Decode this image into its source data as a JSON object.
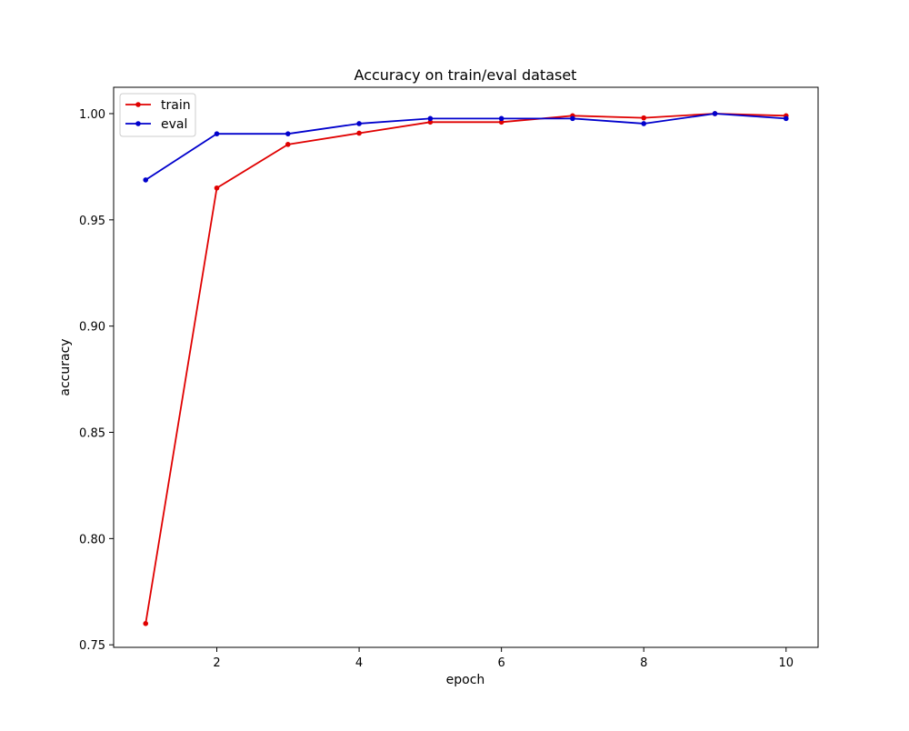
{
  "chart_data": {
    "type": "line",
    "title": "Accuracy on train/eval dataset",
    "xlabel": "epoch",
    "ylabel": "accuracy",
    "xlim": [
      0.55,
      10.45
    ],
    "ylim": [
      0.7488,
      1.0124
    ],
    "x_ticks": [
      2,
      4,
      6,
      8,
      10
    ],
    "x_tick_labels": [
      "2",
      "4",
      "6",
      "8",
      "10"
    ],
    "y_ticks": [
      0.75,
      0.8,
      0.85,
      0.9,
      0.95,
      1.0
    ],
    "y_tick_labels": [
      "0.75",
      "0.80",
      "0.85",
      "0.90",
      "0.95",
      "1.00"
    ],
    "grid": false,
    "legend_position": "top-left",
    "x": [
      1,
      2,
      3,
      4,
      5,
      6,
      7,
      8,
      9,
      10
    ],
    "series": [
      {
        "name": "train",
        "color": "#e00000",
        "values": [
          0.76,
          0.965,
          0.9855,
          0.9908,
          0.996,
          0.996,
          0.999,
          0.998,
          1.0,
          0.999
        ]
      },
      {
        "name": "eval",
        "color": "#0000cc",
        "values": [
          0.9688,
          0.9905,
          0.9905,
          0.9953,
          0.9977,
          0.9977,
          0.9977,
          0.9953,
          1.0,
          0.9977
        ]
      }
    ]
  }
}
